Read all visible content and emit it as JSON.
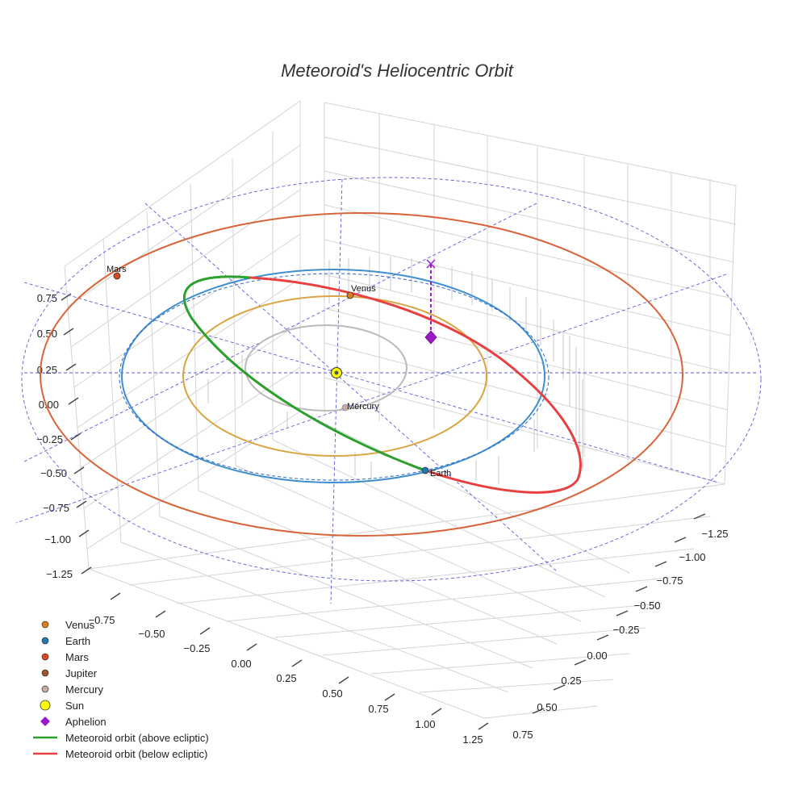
{
  "chart_data": {
    "type": "scatter3d",
    "title": "Meteoroid's Heliocentric Orbit",
    "axes": {
      "z_ticks": [
        "0.75",
        "0.50",
        "0.25",
        "0.00",
        "−0.25",
        "−0.50",
        "−0.75",
        "−1.00",
        "−1.25"
      ],
      "x_ticks": [
        "−0.75",
        "−0.50",
        "−0.25",
        "0.00",
        "0.25",
        "0.50",
        "0.75",
        "1.00",
        "1.25"
      ],
      "y_ticks": [
        "−1.25",
        "−1.00",
        "−0.75",
        "−0.50",
        "−0.25",
        "0.00",
        "0.25",
        "0.50",
        "0.75"
      ]
    },
    "orbits": [
      {
        "name": "Mercury orbit",
        "a_au": 0.39,
        "color": "#bbbbbb"
      },
      {
        "name": "Venus orbit",
        "a_au": 0.72,
        "color": "#d9a441"
      },
      {
        "name": "Earth orbit",
        "a_au": 1.0,
        "color": "#3f8fd0"
      },
      {
        "name": "Mars orbit",
        "a_au": 1.52,
        "color": "#d9643a"
      }
    ],
    "bodies": [
      {
        "name": "Venus",
        "label": "Venus",
        "color": "#d97f1e"
      },
      {
        "name": "Earth",
        "label": "Earth",
        "color": "#1f77b4"
      },
      {
        "name": "Mars",
        "label": "Mars",
        "color": "#d9481e"
      },
      {
        "name": "Mercury",
        "label": "Mercury",
        "color": "#c4aca4"
      },
      {
        "name": "Sun",
        "label": "",
        "color": "#ffff00"
      }
    ],
    "meteoroid": {
      "above_ecliptic_color": "#2ca02c",
      "below_ecliptic_color": "#e84040",
      "aphelion_color": "#9b19c9"
    },
    "legend": [
      {
        "label": "Venus",
        "marker": "circle",
        "color": "#d97f1e"
      },
      {
        "label": "Earth",
        "marker": "circle",
        "color": "#1f77b4"
      },
      {
        "label": "Mars",
        "marker": "circle",
        "color": "#d9481e"
      },
      {
        "label": "Jupiter",
        "marker": "circle",
        "color": "#a0522d"
      },
      {
        "label": "Mercury",
        "marker": "circle",
        "color": "#c4aca4"
      },
      {
        "label": "Sun",
        "marker": "circle-large",
        "color": "#ffff00"
      },
      {
        "label": "Aphelion",
        "marker": "diamond",
        "color": "#9b19c9"
      },
      {
        "label": "Meteoroid orbit (above ecliptic)",
        "marker": "line",
        "color": "#2ca02c"
      },
      {
        "label": "Meteoroid orbit (below ecliptic)",
        "marker": "line",
        "color": "#e84040"
      }
    ]
  }
}
